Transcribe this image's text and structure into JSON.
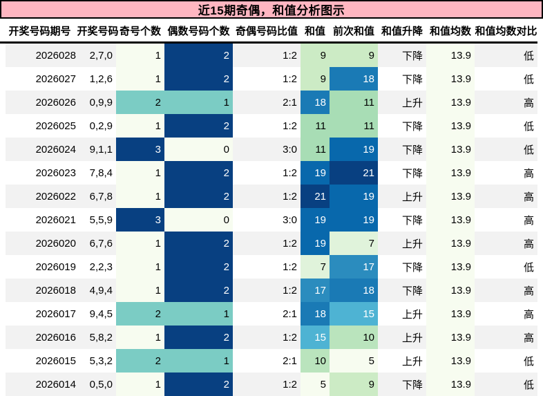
{
  "title": "近15期奇偶，和值分析图示",
  "chart_data": {
    "type": "table",
    "title": "近15期奇偶，和值分析图示",
    "columns": [
      "开奖号码期号",
      "开奖号码",
      "奇号个数",
      "偶数号码个数",
      "奇偶号码比值",
      "和值",
      "前次和值",
      "和值升降",
      "和值均数",
      "和值均数对比"
    ],
    "column_keys": [
      "issue",
      "numbers",
      "odd-count",
      "even-count",
      "odd-even-ratio",
      "sum",
      "prev-sum",
      "sum-trend",
      "sum-mean",
      "sum-mean-compare"
    ],
    "rows": [
      [
        "2026028",
        "2,7,0",
        "1",
        "2",
        "1:2",
        "9",
        "9",
        "下降",
        "13.9",
        "低"
      ],
      [
        "2026027",
        "1,2,6",
        "1",
        "2",
        "1:2",
        "9",
        "18",
        "下降",
        "13.9",
        "低"
      ],
      [
        "2026026",
        "0,9,9",
        "2",
        "1",
        "2:1",
        "18",
        "11",
        "上升",
        "13.9",
        "高"
      ],
      [
        "2026025",
        "0,2,9",
        "1",
        "2",
        "1:2",
        "11",
        "11",
        "下降",
        "13.9",
        "低"
      ],
      [
        "2026024",
        "9,1,1",
        "3",
        "0",
        "3:0",
        "11",
        "19",
        "下降",
        "13.9",
        "低"
      ],
      [
        "2026023",
        "7,8,4",
        "1",
        "2",
        "1:2",
        "19",
        "21",
        "下降",
        "13.9",
        "高"
      ],
      [
        "2026022",
        "6,7,8",
        "1",
        "2",
        "1:2",
        "21",
        "19",
        "上升",
        "13.9",
        "高"
      ],
      [
        "2026021",
        "5,5,9",
        "3",
        "0",
        "3:0",
        "19",
        "19",
        "下降",
        "13.9",
        "高"
      ],
      [
        "2026020",
        "6,7,6",
        "1",
        "2",
        "1:2",
        "19",
        "7",
        "上升",
        "13.9",
        "高"
      ],
      [
        "2026019",
        "2,2,3",
        "1",
        "2",
        "1:2",
        "7",
        "17",
        "下降",
        "13.9",
        "低"
      ],
      [
        "2026018",
        "4,9,4",
        "1",
        "2",
        "1:2",
        "17",
        "18",
        "下降",
        "13.9",
        "高"
      ],
      [
        "2026017",
        "9,4,5",
        "2",
        "1",
        "2:1",
        "18",
        "15",
        "上升",
        "13.9",
        "高"
      ],
      [
        "2026016",
        "5,8,2",
        "1",
        "2",
        "1:2",
        "15",
        "10",
        "上升",
        "13.9",
        "高"
      ],
      [
        "2026015",
        "5,3,2",
        "2",
        "1",
        "2:1",
        "10",
        "5",
        "上升",
        "13.9",
        "低"
      ],
      [
        "2026014",
        "0,5,0",
        "1",
        "2",
        "1:2",
        "5",
        "9",
        "下降",
        "13.9",
        "低"
      ]
    ],
    "heatmap_columns": {
      "2": {
        "min": 1,
        "max": 3
      },
      "3": {
        "min": 0,
        "max": 2
      },
      "5": {
        "min": 5,
        "max": 21
      },
      "6": {
        "min": 5,
        "max": 21
      },
      "8": {
        "min": 13.9,
        "max": 13.9
      }
    },
    "colormap": {
      "name": "GnBu",
      "stops": [
        "#f7fcf0",
        "#e0f3db",
        "#ccebc5",
        "#a8ddb5",
        "#7bccc4",
        "#4eb3d3",
        "#2b8cbe",
        "#0868ac",
        "#084081"
      ],
      "white_text_threshold": 0.6
    }
  },
  "colors": {
    "title_bg": "#ffb6c1",
    "title_border": "#000000",
    "header_border": "#000000",
    "row_stripe": "#f2f2f2",
    "row_plain": "#ffffff",
    "text": "#000000",
    "heatmap_light_text": "#ffffff"
  }
}
